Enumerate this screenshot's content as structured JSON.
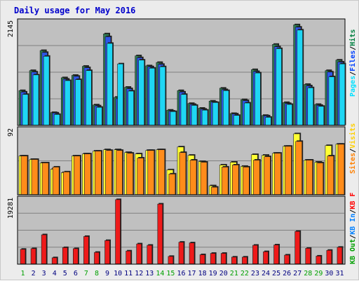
{
  "chart_data": [
    {
      "type": "bar",
      "title": "Daily usage for May 2016",
      "panel": "pages-files-hits",
      "ymax_label": "2145",
      "ylim": [
        0,
        2145
      ],
      "categories": [
        "1",
        "2",
        "3",
        "4",
        "5",
        "6",
        "7",
        "8",
        "9",
        "10",
        "11",
        "12",
        "13",
        "14",
        "15",
        "16",
        "17",
        "18",
        "19",
        "20",
        "21",
        "22",
        "23",
        "24",
        "25",
        "26",
        "27",
        "28",
        "29",
        "30",
        "31"
      ],
      "weekend_days": [
        1,
        7,
        8,
        14,
        15,
        21,
        22,
        28,
        29
      ],
      "legend": [
        {
          "label": "Hits",
          "color": "#008040"
        },
        {
          "label": "Files",
          "color": "#0040ff"
        },
        {
          "label": "Pages",
          "color": "#00e0ff"
        }
      ],
      "series": [
        {
          "name": "Hits",
          "color": "#2f7d54",
          "values": [
            730,
            1150,
            1570,
            270,
            1000,
            1050,
            1240,
            430,
            1920,
            590,
            800,
            1460,
            1250,
            1320,
            320,
            730,
            460,
            360,
            510,
            780,
            250,
            540,
            1170,
            210,
            1700,
            480,
            2110,
            860,
            440,
            1150,
            1370
          ]
        },
        {
          "name": "Files",
          "color": "#2e56e8",
          "values": [
            700,
            1120,
            1530,
            260,
            970,
            1030,
            1210,
            410,
            1860,
            560,
            770,
            1420,
            1230,
            1280,
            300,
            700,
            440,
            340,
            490,
            750,
            240,
            520,
            1130,
            200,
            1650,
            460,
            2060,
            830,
            420,
            1120,
            1330
          ]
        },
        {
          "name": "Pages",
          "color": "#1fd6f4",
          "values": [
            650,
            1060,
            1450,
            230,
            940,
            960,
            1150,
            380,
            1720,
            1290,
            720,
            1370,
            1200,
            1230,
            290,
            650,
            420,
            320,
            480,
            730,
            210,
            470,
            1100,
            170,
            1610,
            440,
            2000,
            790,
            400,
            1020,
            1290
          ]
        }
      ]
    },
    {
      "type": "bar",
      "panel": "visits-sites",
      "ymax_label": "92",
      "ylim": [
        0,
        92
      ],
      "legend": [
        {
          "label": "Visits",
          "color": "#ffd000"
        },
        {
          "label": "Sites",
          "color": "#ff8000"
        }
      ],
      "series": [
        {
          "name": "Visits",
          "color": "#ffff33",
          "values": [
            56,
            51,
            46,
            37,
            32,
            56,
            59,
            63,
            65,
            65,
            61,
            59,
            64,
            65,
            36,
            69,
            57,
            48,
            13,
            43,
            47,
            41,
            58,
            57,
            60,
            70,
            88,
            50,
            47,
            71,
            73
          ]
        },
        {
          "name": "Sites",
          "color": "#ff8c1a",
          "values": [
            56,
            51,
            46,
            40,
            33,
            56,
            59,
            63,
            64,
            64,
            60,
            53,
            64,
            65,
            30,
            61,
            50,
            47,
            11,
            40,
            43,
            40,
            50,
            55,
            60,
            70,
            77,
            50,
            46,
            56,
            73
          ]
        }
      ]
    },
    {
      "type": "bar",
      "panel": "kb",
      "ymax_label": "19281",
      "ylim": [
        0,
        19281
      ],
      "legend": [
        {
          "label": "KB F",
          "color": "#ff0000"
        },
        {
          "label": "KB In",
          "color": "#0080ff"
        },
        {
          "label": "KB Out",
          "color": "#00a000"
        }
      ],
      "series": [
        {
          "name": "KB F",
          "color": "#ee1a1a",
          "values": [
            4400,
            4600,
            8700,
            1900,
            4900,
            4600,
            8200,
            3500,
            7000,
            19100,
            3900,
            6000,
            5600,
            17800,
            2300,
            6500,
            6300,
            2800,
            3200,
            3200,
            2100,
            2100,
            5600,
            3700,
            5700,
            2700,
            9700,
            4700,
            2400,
            4100,
            5000
          ]
        }
      ]
    }
  ]
}
